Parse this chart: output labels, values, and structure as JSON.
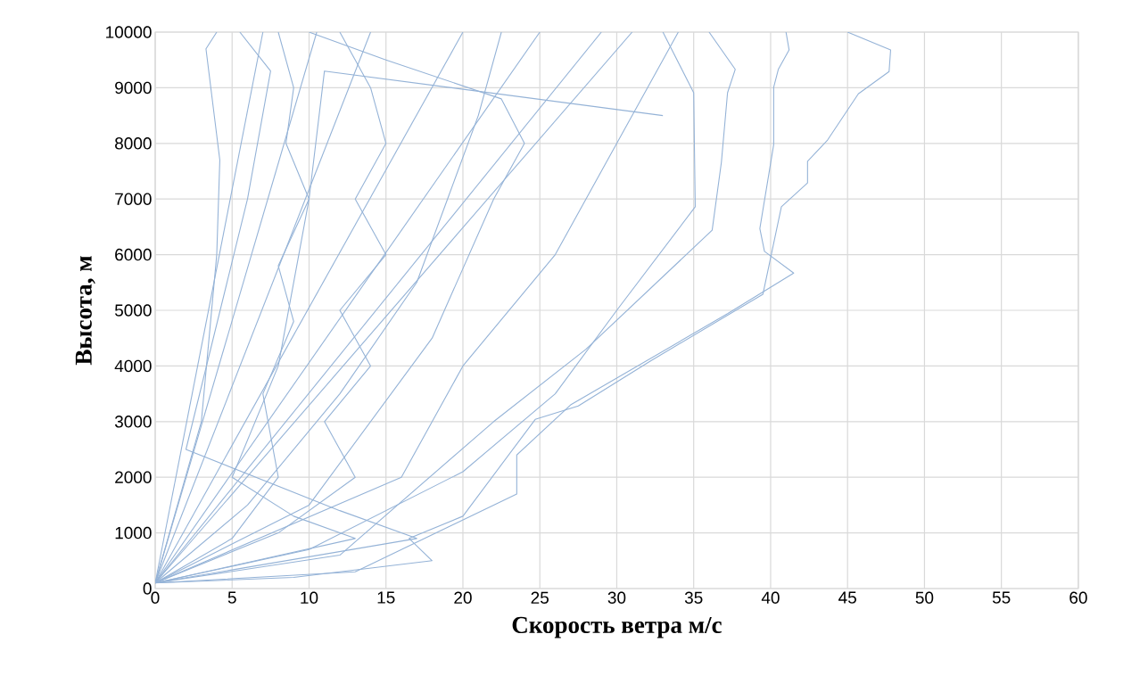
{
  "chart_data": {
    "type": "line",
    "xlabel": "Скорость ветра м/с",
    "ylabel": "Высота, м",
    "xlim": [
      0,
      60
    ],
    "ylim": [
      0,
      10000
    ],
    "xticks": [
      0,
      5,
      10,
      15,
      20,
      25,
      30,
      35,
      40,
      45,
      50,
      55,
      60
    ],
    "yticks": [
      0,
      1000,
      2000,
      3000,
      4000,
      5000,
      6000,
      7000,
      8000,
      9000,
      10000
    ],
    "grid": true,
    "marker": "none",
    "line_style": "solid",
    "series": [
      {
        "color": "#95b3d7",
        "x": [
          0,
          9,
          18,
          16.5,
          20,
          24.7,
          27.5,
          32.2,
          39.5,
          40.7,
          42.4,
          42.4,
          43.7,
          45.7,
          47.7,
          47.8,
          45
        ],
        "values": [
          100,
          200,
          500,
          900,
          1300,
          3040,
          3280,
          4090,
          5290,
          6860,
          7290,
          7680,
          8060,
          8890,
          9290,
          9680,
          10000
        ]
      },
      {
        "color": "#95b3d7",
        "x": [
          0,
          13,
          23.5,
          23.5,
          27,
          37.2,
          41.5,
          39.6,
          39.3,
          40.2,
          40.2,
          40.5,
          41.2,
          41
        ],
        "values": [
          100,
          300,
          1700,
          2400,
          3300,
          4940,
          5670,
          6060,
          6470,
          7980,
          9010,
          9330,
          9680,
          10000
        ]
      },
      {
        "color": "#95b3d7",
        "x": [
          0,
          10,
          20,
          26,
          30,
          35.1,
          35,
          33
        ],
        "values": [
          100,
          700,
          2100,
          3500,
          5000,
          6860,
          8910,
          10000
        ]
      },
      {
        "color": "#95b3d7",
        "x": [
          0,
          12,
          22,
          28,
          36.2,
          36.8,
          37.2,
          37.7,
          36
        ],
        "values": [
          100,
          600,
          3000,
          4300,
          6440,
          7660,
          8910,
          9330,
          10000
        ]
      },
      {
        "color": "#95b3d7",
        "x": [
          0,
          3,
          4,
          4.2,
          3.3,
          4
        ],
        "values": [
          100,
          3000,
          6000,
          7700,
          9700,
          10000
        ]
      },
      {
        "color": "#95b3d7",
        "x": [
          0,
          5,
          8,
          7,
          9,
          8,
          10,
          8.5,
          9,
          8
        ],
        "values": [
          100,
          900,
          2000,
          3500,
          4800,
          5800,
          7000,
          8000,
          9000,
          10000
        ]
      },
      {
        "color": "#95b3d7",
        "x": [
          0,
          8,
          13,
          11,
          14,
          12,
          15,
          13,
          15,
          14,
          12
        ],
        "values": [
          100,
          1000,
          2000,
          3000,
          4000,
          5000,
          6000,
          7000,
          8000,
          9000,
          10000
        ]
      },
      {
        "color": "#95b3d7",
        "x": [
          0,
          10,
          18,
          22,
          24,
          22.5,
          15,
          10
        ],
        "values": [
          100,
          1500,
          4500,
          7000,
          8000,
          8800,
          9500,
          10000
        ]
      },
      {
        "color": "#95b3d7",
        "x": [
          0,
          13,
          9,
          5,
          8,
          10,
          11,
          33
        ],
        "values": [
          100,
          900,
          1300,
          2000,
          4000,
          7000,
          9300,
          8500
        ]
      },
      {
        "color": "#95b3d7",
        "x": [
          0,
          17,
          12,
          2,
          6,
          7.5,
          5.5
        ],
        "values": [
          100,
          900,
          1400,
          2500,
          7000,
          9300,
          10000
        ]
      },
      {
        "color": "#95b3d7",
        "x": [
          0,
          7
        ],
        "values": [
          100,
          10000
        ]
      },
      {
        "color": "#95b3d7",
        "x": [
          0,
          10.5
        ],
        "values": [
          100,
          10000
        ]
      },
      {
        "color": "#95b3d7",
        "x": [
          0,
          14
        ],
        "values": [
          100,
          10000
        ]
      },
      {
        "color": "#95b3d7",
        "x": [
          0,
          20
        ],
        "values": [
          100,
          10000
        ]
      },
      {
        "color": "#95b3d7",
        "x": [
          0,
          25
        ],
        "values": [
          100,
          10000
        ]
      },
      {
        "color": "#95b3d7",
        "x": [
          0,
          29
        ],
        "values": [
          100,
          10000
        ]
      },
      {
        "color": "#95b3d7",
        "x": [
          0,
          31
        ],
        "values": [
          100,
          10000
        ]
      },
      {
        "color": "#95b3d7",
        "x": [
          0,
          16,
          20,
          26,
          30,
          34
        ],
        "values": [
          100,
          2000,
          4000,
          6000,
          8000,
          10000
        ]
      },
      {
        "color": "#95b3d7",
        "x": [
          0,
          6,
          12,
          17,
          19,
          21,
          22.5
        ],
        "values": [
          100,
          1500,
          3500,
          5500,
          7000,
          8500,
          10000
        ]
      }
    ]
  }
}
